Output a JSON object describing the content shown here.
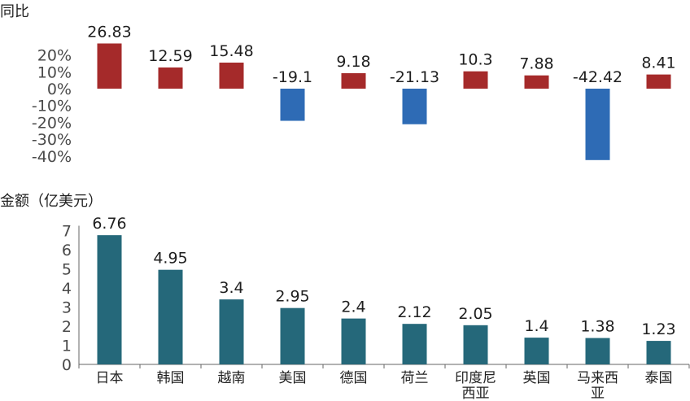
{
  "colors": {
    "positive": "#A52A2A",
    "negative": "#2E6BB5",
    "amount": "#25687A",
    "axis": "#666666",
    "text": "#1f1f1f"
  },
  "chart_data": [
    {
      "type": "bar",
      "title": "同比",
      "categories": [
        "日本",
        "韩国",
        "越南",
        "美国",
        "德国",
        "荷兰",
        "印度尼西亚",
        "英国",
        "马来西亚",
        "泰国"
      ],
      "values": [
        26.83,
        12.59,
        15.48,
        -19.1,
        9.18,
        -21.13,
        10.3,
        7.88,
        -42.42,
        8.41
      ],
      "value_labels": [
        "26.83",
        "12.59",
        "15.48",
        "-19.1",
        "9.18",
        "-21.13",
        "10.3",
        "7.88",
        "-42.42",
        "8.41"
      ],
      "yticks": [
        "20%",
        "10%",
        "0%",
        "-10%",
        "-20%",
        "-30%",
        "-40%"
      ],
      "ytick_values": [
        20,
        10,
        0,
        -10,
        -20,
        -30,
        -40
      ],
      "ylim": [
        -42.42,
        26.83
      ],
      "grid": false
    },
    {
      "type": "bar",
      "title": "金额（亿美元）",
      "categories": [
        "日本",
        "韩国",
        "越南",
        "美国",
        "德国",
        "荷兰",
        "印度尼西亚",
        "英国",
        "马来西亚",
        "泰国"
      ],
      "category_lines": [
        [
          "日本"
        ],
        [
          "韩国"
        ],
        [
          "越南"
        ],
        [
          "美国"
        ],
        [
          "德国"
        ],
        [
          "荷兰"
        ],
        [
          "印度尼",
          "西亚"
        ],
        [
          "英国"
        ],
        [
          "马来西",
          "亚"
        ],
        [
          "泰国"
        ]
      ],
      "values": [
        6.76,
        4.95,
        3.4,
        2.95,
        2.4,
        2.12,
        2.05,
        1.4,
        1.38,
        1.23
      ],
      "value_labels": [
        "6.76",
        "4.95",
        "3.4",
        "2.95",
        "2.4",
        "2.12",
        "2.05",
        "1.4",
        "1.38",
        "1.23"
      ],
      "yticks": [
        "7",
        "6",
        "5",
        "4",
        "3",
        "2",
        "1",
        "0"
      ],
      "ytick_values": [
        7,
        6,
        5,
        4,
        3,
        2,
        1,
        0
      ],
      "ylim": [
        0,
        7
      ],
      "grid": false
    }
  ]
}
